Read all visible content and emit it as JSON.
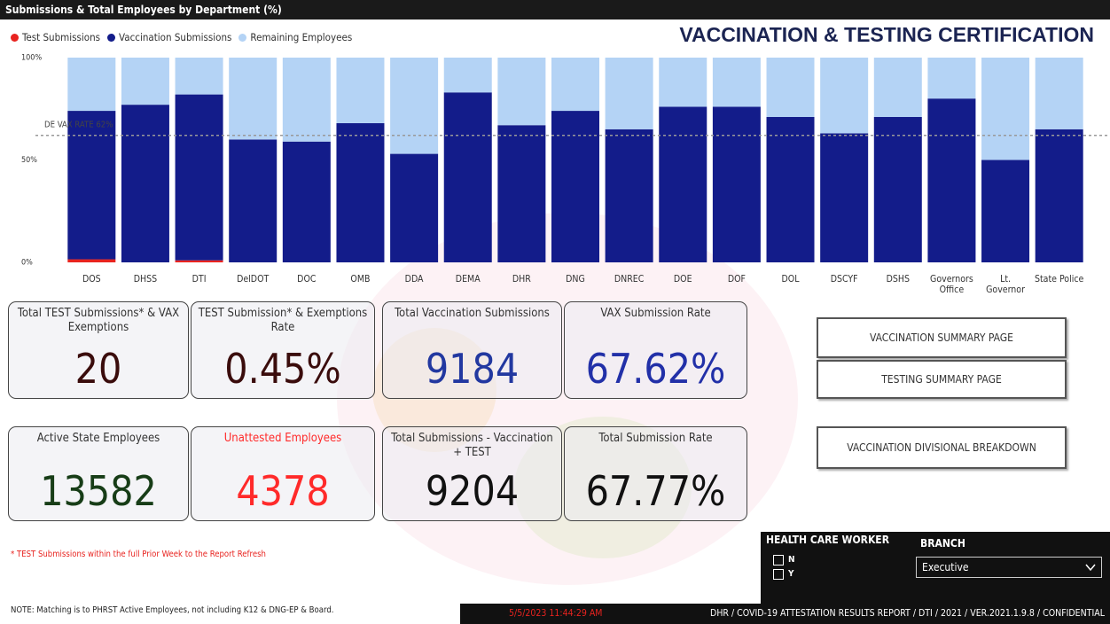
{
  "header": {
    "title": "Submissions & Total Employees by Department (%)",
    "banner": "VACCINATION & TESTING CERTIFICATION"
  },
  "chart_data": {
    "type": "bar",
    "stacked": true,
    "categories": [
      "DOS",
      "DHSS",
      "DTI",
      "DelDOT",
      "DOC",
      "OMB",
      "DDA",
      "DEMA",
      "DHR",
      "DNG",
      "DNREC",
      "DOE",
      "DOF",
      "DOL",
      "DSCYF",
      "DSHS",
      "Governors Office",
      "Lt. Governor",
      "State Police"
    ],
    "series": [
      {
        "name": "Test Submissions",
        "color": "#e8231f",
        "values": [
          1.5,
          0,
          1,
          0,
          0,
          0,
          0,
          0,
          0,
          0,
          0,
          0,
          0,
          0,
          0,
          0,
          0,
          0,
          0
        ]
      },
      {
        "name": "Vaccination Submissions",
        "color": "#131c8a",
        "values": [
          72.5,
          77,
          81,
          60,
          59,
          68,
          53,
          83,
          67,
          74,
          65,
          76,
          76,
          71,
          63,
          71,
          80,
          50,
          65
        ]
      },
      {
        "name": "Remaining Employees",
        "color": "#b4d3f5",
        "values": [
          26,
          23,
          18,
          40,
          41,
          32,
          47,
          17,
          33,
          26,
          35,
          24,
          24,
          29,
          37,
          29,
          20,
          50,
          35
        ]
      }
    ],
    "ylim": [
      0,
      100
    ],
    "yticks": [
      {
        "value": 0,
        "label": "0%"
      },
      {
        "value": 50,
        "label": "50%"
      },
      {
        "value": 100,
        "label": "100%"
      }
    ],
    "reference": {
      "value": 62,
      "label": "DE VAX RATE 62%"
    }
  },
  "cards": [
    {
      "label": "Total TEST Submissions* & VAX Exemptions",
      "value": "20"
    },
    {
      "label": "TEST Submission* & Exemptions Rate",
      "value": "0.45%"
    },
    {
      "label": "Total Vaccination Submissions",
      "value": "9184"
    },
    {
      "label": "VAX Submission Rate",
      "value": "67.62%"
    },
    {
      "label": "Active State Employees",
      "value": "13582"
    },
    {
      "label": "Unattested Employees",
      "value": "4378"
    },
    {
      "label": "Total Submissions - Vaccination + TEST",
      "value": "9204"
    },
    {
      "label": "Total Submission Rate",
      "value": "67.77%"
    }
  ],
  "buttons": [
    "VACCINATION SUMMARY PAGE",
    "TESTING SUMMARY PAGE",
    "VACCINATION DIVISIONAL BREAKDOWN"
  ],
  "footnote": "* TEST Submissions within the full Prior Week to the Report Refresh",
  "note": "NOTE: Matching is to PHRST Active Employees, not including K12 & DNG-EP & Board.",
  "filters": {
    "title": "HEALTH CARE WORKER",
    "options": [
      "N",
      "Y"
    ],
    "branch_label": "BRANCH",
    "branch_value": "Executive"
  },
  "footer": {
    "timestamp": "5/5/2023 11:44:29 AM",
    "text": "DHR / COVID-19 ATTESTATION RESULTS REPORT / DTI / 2021 / VER.2021.1.9.8 / CONFIDENTIAL"
  }
}
